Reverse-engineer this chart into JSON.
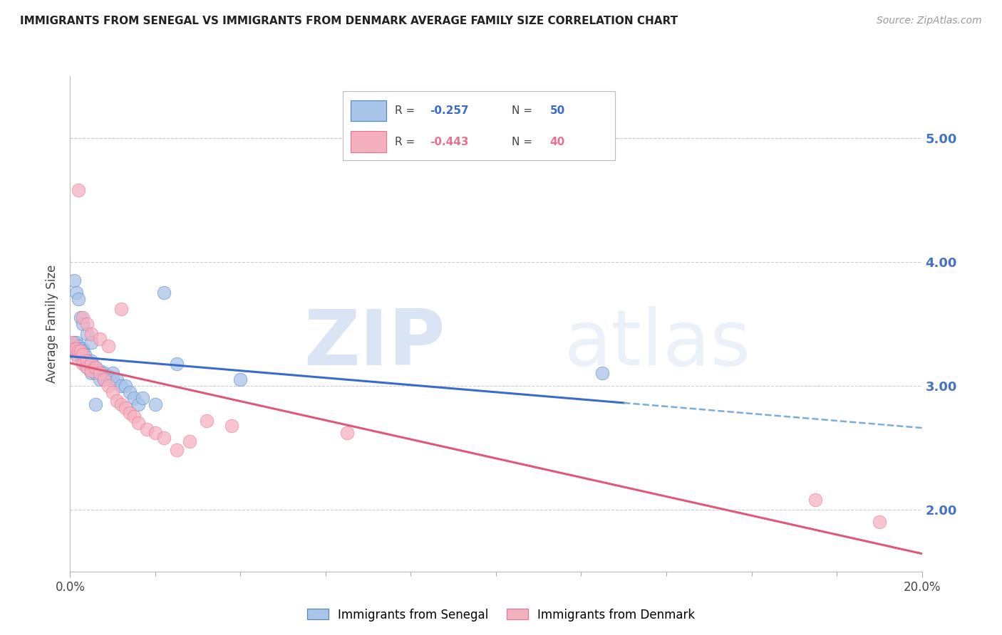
{
  "title": "IMMIGRANTS FROM SENEGAL VS IMMIGRANTS FROM DENMARK AVERAGE FAMILY SIZE CORRELATION CHART",
  "source": "Source: ZipAtlas.com",
  "ylabel": "Average Family Size",
  "xlim": [
    0.0,
    0.2
  ],
  "ylim": [
    1.5,
    5.5
  ],
  "yticks": [
    2.0,
    3.0,
    4.0,
    5.0
  ],
  "xtick_major": [
    0.0,
    0.2
  ],
  "xtick_major_labels": [
    "0.0%",
    "20.0%"
  ],
  "xtick_minor": [
    0.02,
    0.04,
    0.06,
    0.08,
    0.1,
    0.12,
    0.14,
    0.16,
    0.18
  ],
  "right_ytick_color": "#4472c4",
  "senegal_color": "#a8c4e8",
  "denmark_color": "#f5b0c0",
  "senegal_edge_color": "#5080c8",
  "denmark_edge_color": "#e87090",
  "senegal_line_color": "#3a6bc8",
  "denmark_line_color": "#e05878",
  "senegal_dash_color": "#7aacdc",
  "legend_label_senegal": "Immigrants from Senegal",
  "legend_label_denmark": "Immigrants from Denmark",
  "background_color": "#ffffff",
  "grid_color": "#cccccc",
  "senegal_R": -0.257,
  "senegal_N": 50,
  "denmark_R": -0.443,
  "denmark_N": 40,
  "senegal_scatter_x": [
    0.0005,
    0.001,
    0.001,
    0.0015,
    0.0015,
    0.002,
    0.002,
    0.0025,
    0.0025,
    0.003,
    0.003,
    0.003,
    0.0035,
    0.0035,
    0.004,
    0.004,
    0.004,
    0.0045,
    0.005,
    0.005,
    0.005,
    0.006,
    0.006,
    0.007,
    0.007,
    0.008,
    0.008,
    0.009,
    0.01,
    0.01,
    0.011,
    0.012,
    0.013,
    0.014,
    0.015,
    0.016,
    0.017,
    0.02,
    0.022,
    0.025,
    0.001,
    0.0015,
    0.002,
    0.0025,
    0.003,
    0.004,
    0.005,
    0.006,
    0.04,
    0.125
  ],
  "senegal_scatter_y": [
    3.3,
    3.35,
    3.3,
    3.35,
    3.25,
    3.32,
    3.28,
    3.3,
    3.25,
    3.3,
    3.28,
    3.22,
    3.25,
    3.18,
    3.2,
    3.2,
    3.15,
    3.18,
    3.2,
    3.15,
    3.1,
    3.15,
    3.1,
    3.12,
    3.05,
    3.1,
    3.05,
    3.08,
    3.1,
    3.05,
    3.05,
    3.0,
    3.0,
    2.95,
    2.9,
    2.85,
    2.9,
    2.85,
    3.75,
    3.18,
    3.85,
    3.75,
    3.7,
    3.55,
    3.5,
    3.42,
    3.35,
    2.85,
    3.05,
    3.1
  ],
  "denmark_scatter_x": [
    0.0005,
    0.001,
    0.0015,
    0.002,
    0.002,
    0.0025,
    0.003,
    0.003,
    0.004,
    0.004,
    0.005,
    0.005,
    0.006,
    0.007,
    0.008,
    0.009,
    0.01,
    0.011,
    0.012,
    0.013,
    0.014,
    0.015,
    0.016,
    0.018,
    0.02,
    0.022,
    0.025,
    0.028,
    0.032,
    0.038,
    0.002,
    0.003,
    0.004,
    0.005,
    0.007,
    0.009,
    0.012,
    0.065,
    0.175,
    0.19
  ],
  "denmark_scatter_y": [
    3.35,
    3.3,
    3.3,
    3.28,
    3.22,
    3.28,
    3.25,
    3.18,
    3.2,
    3.15,
    3.18,
    3.12,
    3.15,
    3.1,
    3.05,
    3.0,
    2.95,
    2.88,
    2.85,
    2.82,
    2.78,
    2.75,
    2.7,
    2.65,
    2.62,
    2.58,
    2.48,
    2.55,
    2.72,
    2.68,
    4.58,
    3.55,
    3.5,
    3.42,
    3.38,
    3.32,
    3.62,
    2.62,
    2.08,
    1.9
  ]
}
